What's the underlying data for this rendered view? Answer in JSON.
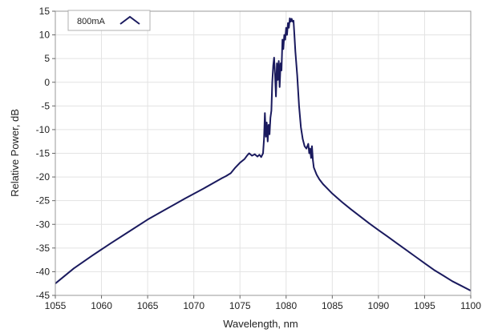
{
  "chart_data": {
    "type": "line",
    "title": "",
    "xlabel": "Wavelength, nm",
    "ylabel": "Relative Power, dB",
    "xlim": [
      1055,
      1100
    ],
    "ylim": [
      -45,
      15
    ],
    "xticks": [
      1055,
      1060,
      1065,
      1070,
      1075,
      1080,
      1085,
      1090,
      1095,
      1100
    ],
    "yticks": [
      15,
      10,
      5,
      0,
      -5,
      -10,
      -15,
      -20,
      -25,
      -30,
      -35,
      -40,
      -45
    ],
    "grid": true,
    "legend_position": "top-left",
    "series": [
      {
        "name": "800mA",
        "color": "#1a1a5e",
        "x": [
          1055.0,
          1057.0,
          1059.0,
          1061.0,
          1063.0,
          1065.0,
          1067.0,
          1069.0,
          1071.0,
          1073.0,
          1073.5,
          1074.0,
          1074.5,
          1075.0,
          1075.5,
          1075.8,
          1076.0,
          1076.3,
          1076.6,
          1076.9,
          1077.1,
          1077.3,
          1077.5,
          1077.6,
          1077.7,
          1077.8,
          1077.9,
          1078.0,
          1078.1,
          1078.2,
          1078.3,
          1078.4,
          1078.5,
          1078.6,
          1078.7,
          1078.8,
          1078.9,
          1079.0,
          1079.1,
          1079.2,
          1079.3,
          1079.4,
          1079.5,
          1079.6,
          1079.7,
          1079.8,
          1079.9,
          1080.0,
          1080.1,
          1080.2,
          1080.3,
          1080.4,
          1080.5,
          1080.6,
          1080.7,
          1080.8,
          1080.9,
          1081.0,
          1081.2,
          1081.4,
          1081.6,
          1081.8,
          1082.0,
          1082.2,
          1082.4,
          1082.5,
          1082.6,
          1082.7,
          1082.8,
          1082.9,
          1083.0,
          1083.3,
          1083.6,
          1084.0,
          1084.5,
          1085.0,
          1086.0,
          1087.0,
          1088.0,
          1089.0,
          1090.0,
          1091.0,
          1092.0,
          1093.0,
          1094.0,
          1095.0,
          1096.0,
          1097.0,
          1098.0,
          1099.0,
          1100.0
        ],
        "y": [
          -42.5,
          -39.3,
          -36.6,
          -34.0,
          -31.5,
          -29.0,
          -26.8,
          -24.6,
          -22.5,
          -20.3,
          -19.8,
          -19.2,
          -18.0,
          -17.0,
          -16.2,
          -15.4,
          -15.0,
          -15.5,
          -15.2,
          -15.7,
          -15.3,
          -15.8,
          -15.0,
          -12.0,
          -6.5,
          -11.5,
          -8.5,
          -12.5,
          -9.0,
          -11.0,
          -7.5,
          -6.0,
          0.0,
          3.5,
          5.2,
          1.5,
          -3.0,
          4.0,
          0.5,
          4.5,
          -1.0,
          4.0,
          2.5,
          9.0,
          7.0,
          10.0,
          9.0,
          11.5,
          10.0,
          12.5,
          11.5,
          13.5,
          12.8,
          13.4,
          12.8,
          13.0,
          10.0,
          6.5,
          1.5,
          -5.0,
          -9.5,
          -12.0,
          -13.5,
          -14.0,
          -13.0,
          -15.0,
          -14.0,
          -16.0,
          -13.5,
          -16.5,
          -18.0,
          -19.5,
          -20.5,
          -21.5,
          -22.5,
          -23.5,
          -25.2,
          -26.8,
          -28.3,
          -29.8,
          -31.2,
          -32.6,
          -34.0,
          -35.4,
          -36.8,
          -38.2,
          -39.6,
          -40.8,
          -42.0,
          -43.0,
          -44.0
        ]
      }
    ]
  }
}
